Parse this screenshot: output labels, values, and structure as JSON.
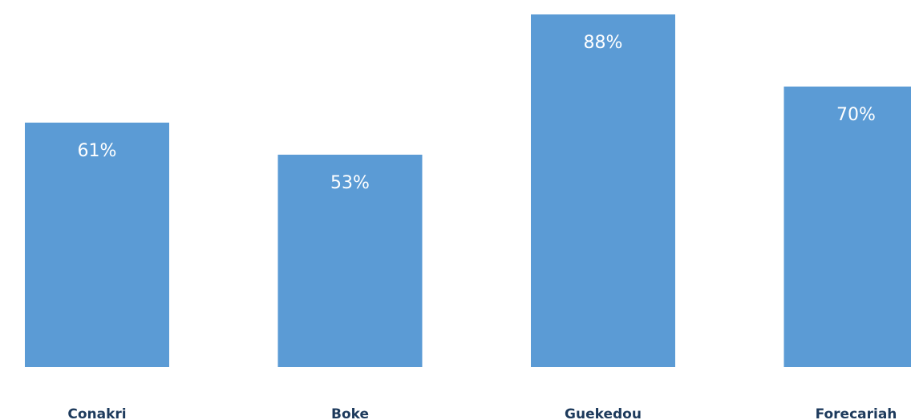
{
  "chart_data": {
    "type": "bar",
    "categories": [
      "Conakri",
      "Boke",
      "Guekedou",
      "Forecariah"
    ],
    "values": [
      61,
      53,
      88,
      70
    ],
    "data_labels": [
      "61%",
      "53%",
      "88%",
      "70%"
    ],
    "unit": "%",
    "title": "",
    "xlabel": "",
    "ylabel": "",
    "ylim": [
      0,
      88
    ],
    "grid": false,
    "legend": "none",
    "bar_color": "#5b9bd5",
    "category_label_color": "#1d3a5c",
    "data_label_color": "#ffffff"
  }
}
